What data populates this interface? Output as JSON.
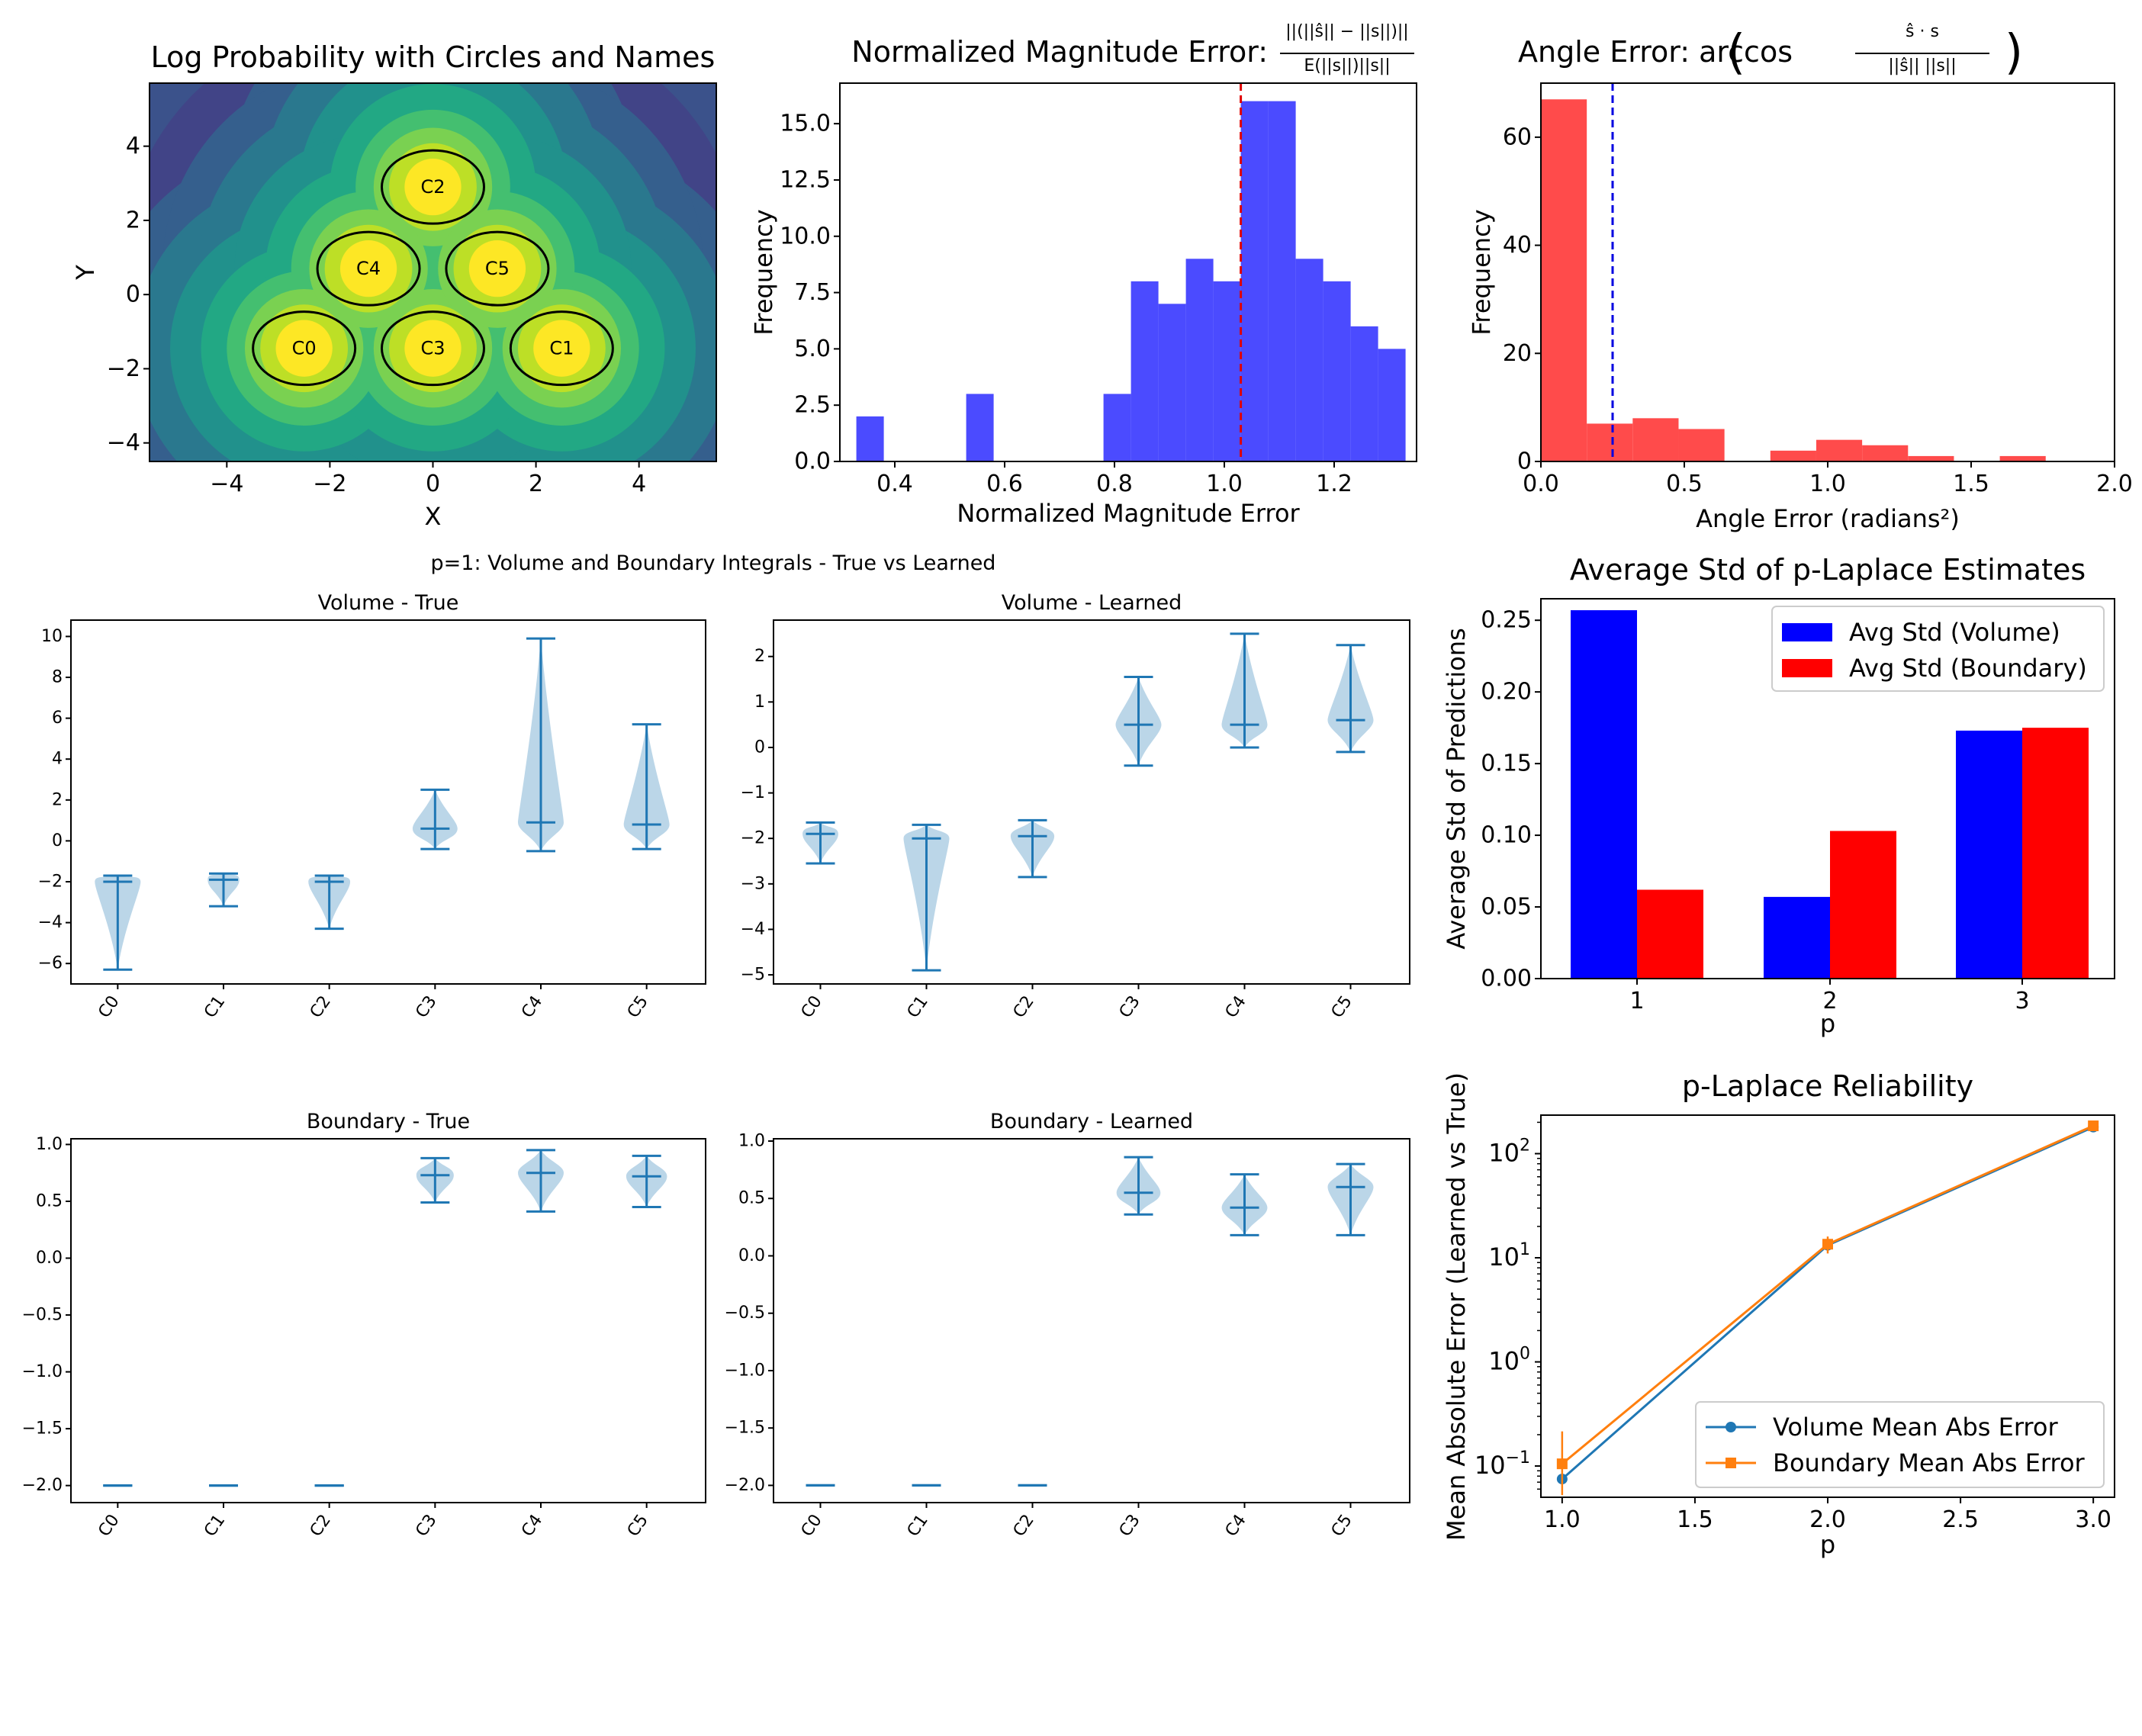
{
  "chart_data": [
    {
      "id": "logprob",
      "type": "heatmap",
      "title": "Log Probability with Circles and Names",
      "xlabel": "X",
      "ylabel": "Y",
      "xlim": [
        -5.5,
        5.5
      ],
      "ylim": [
        -4.5,
        5.7
      ],
      "xticks": [
        -4,
        -2,
        0,
        2,
        4
      ],
      "yticks": [
        -4,
        -2,
        0,
        2,
        4
      ],
      "circles": [
        {
          "name": "C0",
          "x": -2.5,
          "y": -1.45,
          "r": 1.0
        },
        {
          "name": "C1",
          "x": 2.5,
          "y": -1.45,
          "r": 1.0
        },
        {
          "name": "C2",
          "x": 0.0,
          "y": 2.9,
          "r": 1.0
        },
        {
          "name": "C3",
          "x": 0.0,
          "y": -1.45,
          "r": 1.0
        },
        {
          "name": "C4",
          "x": -1.25,
          "y": 0.7,
          "r": 1.0
        },
        {
          "name": "C5",
          "x": 1.25,
          "y": 0.7,
          "r": 1.0
        }
      ]
    },
    {
      "id": "maghist",
      "type": "bar",
      "title": "Normalized Magnitude Error:",
      "formula": {
        "num": "||(||ŝ|| − ||s||)||",
        "den": "E(||s||)||s||"
      },
      "xlabel": "Normalized Magnitude Error",
      "ylabel": "Frequency",
      "xlim": [
        0.3,
        1.35
      ],
      "ylim": [
        0,
        16.8
      ],
      "xticks": [
        0.4,
        0.6,
        0.8,
        1.0,
        1.2
      ],
      "yticks": [
        0.0,
        2.5,
        5.0,
        7.5,
        10.0,
        12.5,
        15.0
      ],
      "bar_color": "#4b4bff",
      "line_color": "#e00000",
      "vline": 1.03,
      "bin_width": 0.05,
      "bins": [
        [
          0.33,
          2
        ],
        [
          0.53,
          3
        ],
        [
          0.78,
          3
        ],
        [
          0.83,
          8
        ],
        [
          0.88,
          7
        ],
        [
          0.93,
          9
        ],
        [
          0.98,
          8
        ],
        [
          1.03,
          16
        ],
        [
          1.08,
          16
        ],
        [
          1.13,
          9
        ],
        [
          1.18,
          8
        ],
        [
          1.23,
          6
        ],
        [
          1.28,
          5
        ]
      ]
    },
    {
      "id": "anglehist",
      "type": "bar",
      "title": "Angle Error: arccos",
      "formula": {
        "num": "ŝ · s",
        "den": "||ŝ|| ||s||"
      },
      "xlabel": "Angle Error (radians²)",
      "ylabel": "Frequency",
      "xlim": [
        0.0,
        2.0
      ],
      "ylim": [
        0,
        70
      ],
      "xticks": [
        0.0,
        0.5,
        1.0,
        1.5,
        2.0
      ],
      "yticks": [
        0,
        20,
        40,
        60
      ],
      "bar_color": "#ff4b4b",
      "line_color": "#0000e0",
      "vline": 0.25,
      "bin_width": 0.16,
      "bins": [
        [
          0.0,
          67
        ],
        [
          0.16,
          7
        ],
        [
          0.32,
          8
        ],
        [
          0.48,
          6
        ],
        [
          0.8,
          2
        ],
        [
          0.96,
          4
        ],
        [
          1.12,
          3
        ],
        [
          1.28,
          1
        ],
        [
          1.6,
          1
        ]
      ]
    },
    {
      "id": "violins",
      "type": "violin",
      "suptitle": "p=1: Volume and Boundary Integrals - True vs Learned",
      "categories": [
        "C0",
        "C1",
        "C2",
        "C3",
        "C4",
        "C5"
      ],
      "color": "#1f77b4",
      "panels": [
        {
          "title": "Volume - True",
          "ylim": [
            -7,
            10.8
          ],
          "yticks": [
            -6,
            -4,
            -2,
            0,
            2,
            4,
            6,
            8,
            10
          ],
          "stats": [
            [
              -6.3,
              -2.0,
              -1.7
            ],
            [
              -3.2,
              -1.9,
              -1.6
            ],
            [
              -4.3,
              -2.0,
              -1.7
            ],
            [
              -0.4,
              0.6,
              2.5
            ],
            [
              -0.5,
              0.9,
              9.9
            ],
            [
              -0.4,
              0.8,
              5.7
            ]
          ]
        },
        {
          "title": "Volume - Learned",
          "ylim": [
            -5.2,
            2.8
          ],
          "yticks": [
            -5,
            -4,
            -3,
            -2,
            -1,
            0,
            1,
            2
          ],
          "stats": [
            [
              -2.55,
              -1.9,
              -1.65
            ],
            [
              -4.9,
              -2.0,
              -1.7
            ],
            [
              -2.85,
              -1.95,
              -1.6
            ],
            [
              -0.4,
              0.5,
              1.55
            ],
            [
              0.0,
              0.5,
              2.5
            ],
            [
              -0.1,
              0.6,
              2.25
            ]
          ]
        },
        {
          "title": "Boundary - True",
          "ylim": [
            -2.15,
            1.05
          ],
          "yticks": [
            -2.0,
            -1.5,
            -1.0,
            -0.5,
            0.0,
            0.5,
            1.0
          ],
          "stats": [
            [
              -2.0,
              -2.0,
              -2.0
            ],
            [
              -2.0,
              -2.0,
              -2.0
            ],
            [
              -2.0,
              -2.0,
              -2.0
            ],
            [
              0.49,
              0.73,
              0.88
            ],
            [
              0.41,
              0.75,
              0.95
            ],
            [
              0.45,
              0.72,
              0.9
            ]
          ]
        },
        {
          "title": "Boundary - Learned",
          "ylim": [
            -2.15,
            1.02
          ],
          "yticks": [
            -2.0,
            -1.5,
            -1.0,
            -0.5,
            0.0,
            0.5,
            1.0
          ],
          "stats": [
            [
              -2.0,
              -2.0,
              -2.0
            ],
            [
              -2.0,
              -2.0,
              -2.0
            ],
            [
              -2.0,
              -2.0,
              -2.0
            ],
            [
              0.36,
              0.55,
              0.86
            ],
            [
              0.18,
              0.42,
              0.71
            ],
            [
              0.18,
              0.6,
              0.8
            ]
          ]
        }
      ]
    },
    {
      "id": "avgstd",
      "type": "bar",
      "title": "Average Std of p-Laplace Estimates",
      "xlabel": "p",
      "ylabel": "Average Std of Predictions",
      "categories": [
        "1",
        "2",
        "3"
      ],
      "ylim": [
        0,
        0.265
      ],
      "yticks": [
        0.0,
        0.05,
        0.1,
        0.15,
        0.2,
        0.25
      ],
      "series": [
        {
          "name": "Avg Std (Volume)",
          "color": "#0000ff",
          "values": [
            0.257,
            0.057,
            0.173
          ]
        },
        {
          "name": "Avg Std (Boundary)",
          "color": "#ff0000",
          "values": [
            0.062,
            0.103,
            0.175
          ]
        }
      ]
    },
    {
      "id": "reliability",
      "type": "line",
      "title": "p-Laplace Reliability",
      "xlabel": "p",
      "ylabel": "Mean Absolute Error (Learned vs True)",
      "xlim": [
        0.92,
        3.08
      ],
      "ylog_range": [
        -1.3,
        2.37
      ],
      "xticks": [
        1.0,
        1.5,
        2.0,
        2.5,
        3.0
      ],
      "yticks_exp": [
        -1,
        0,
        1,
        2
      ],
      "x": [
        1.0,
        2.0,
        3.0
      ],
      "series": [
        {
          "name": "Volume Mean Abs Error",
          "color": "#1f77b4",
          "marker": "circle",
          "values": [
            0.075,
            13.2,
            180
          ],
          "err": [
            0.0,
            1.5,
            8
          ]
        },
        {
          "name": "Boundary Mean Abs Error",
          "color": "#ff7f0e",
          "marker": "square",
          "values": [
            0.105,
            13.5,
            185
          ],
          "err": [
            0.11,
            2.5,
            8
          ]
        }
      ]
    }
  ]
}
